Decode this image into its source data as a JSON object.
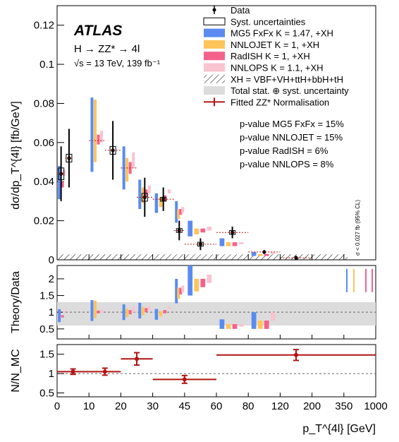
{
  "chart_data": [
    {
      "type": "scatter",
      "ylabel": "dσ/dp_T^{4l} [fb/GeV]",
      "ylim": [
        0,
        0.13
      ],
      "yticks": [
        0,
        0.02,
        0.04,
        0.06,
        0.08,
        0.1,
        0.12
      ],
      "ytick_labels": [
        "0",
        "0.02",
        "0.04",
        "0.06",
        "0.08",
        "0.1",
        "0.12"
      ],
      "experiment": "ATLAS",
      "process": "H → ZZ* → 4l",
      "energy_lumi": "√s = 13 TeV, 139 fb⁻¹",
      "upper_limit_note": "σ < 0.027 fb (95% CL)",
      "legend": [
        {
          "label": "Data",
          "color": "#000000",
          "style": "marker"
        },
        {
          "label": "Syst. uncertainties",
          "color": "#000000",
          "style": "open-box"
        },
        {
          "label": "MG5 FxFx K = 1.47, +XH",
          "color": "#5B8BF0",
          "style": "band"
        },
        {
          "label": "NNLOJET K = 1, +XH",
          "color": "#FFC45A",
          "style": "band"
        },
        {
          "label": "RadISH K = 1, +XH",
          "color": "#F4628C",
          "style": "band"
        },
        {
          "label": "NNLOPS K = 1.1, +XH",
          "color": "#F9C3CF",
          "style": "band"
        },
        {
          "label": "XH = VBF+VH+ttH+bbH+tH",
          "color": "#000000",
          "style": "hatch"
        },
        {
          "label": "Total stat. ⊕ syst. uncertainty",
          "color": "#DCDCDC",
          "style": "band"
        },
        {
          "label": "Fitted ZZ* Normalisation",
          "color": "#B11515",
          "style": "errorbar"
        }
      ],
      "pvalues": [
        "p-value MG5 FxFx = 15%",
        "p-value NNLOJET = 15%",
        "p-value RadISH = 6%",
        "p-value NNLOPS = 8%"
      ],
      "bins": [
        {
          "lo": "0",
          "hi": "2.5",
          "data": 0.044,
          "err_up": 0.014,
          "err_down": 0.014,
          "syst": 0.003,
          "mg5": [
            0.031,
            0.048
          ],
          "nnlojet": null,
          "radish": [
            0.037,
            0.04
          ],
          "nnlops": [
            0.043,
            0.046
          ]
        },
        {
          "lo": "2.5",
          "hi": "5",
          "data": 0.052,
          "err_up": 0.015,
          "err_down": 0.015,
          "syst": 0.002,
          "mg5": null,
          "nnlojet": null,
          "radish": null,
          "nnlops": null
        },
        {
          "lo": "10",
          "hi": "15",
          "data": 0.061,
          "err_up": 0.0,
          "err_down": 0.0,
          "syst": 0.0,
          "mg5": [
            0.045,
            0.083
          ],
          "nnlojet": [
            0.05,
            0.082
          ],
          "radish": [
            0.059,
            0.064
          ],
          "nnlops": [
            0.06,
            0.066
          ]
        },
        {
          "lo": "15",
          "hi": "20",
          "data": 0.056,
          "err_up": 0.015,
          "err_down": 0.015,
          "syst": 0.002,
          "mg5": null,
          "nnlojet": null,
          "radish": null,
          "nnlops": null
        },
        {
          "lo": "20",
          "hi": "25",
          "data": 0.047,
          "err_up": 0.0,
          "err_down": 0.0,
          "syst": 0.0,
          "mg5": [
            0.036,
            0.058
          ],
          "nnlojet": [
            0.04,
            0.052
          ],
          "radish": [
            0.044,
            0.05
          ],
          "nnlops": [
            0.047,
            0.055
          ]
        },
        {
          "lo": "25",
          "hi": "30",
          "data": 0.032,
          "err_up": 0.01,
          "err_down": 0.01,
          "syst": 0.002,
          "mg5": [
            0.026,
            0.041
          ],
          "nnlojet": [
            0.029,
            0.037
          ],
          "radish": [
            0.032,
            0.036
          ],
          "nnlops": [
            0.034,
            0.038
          ]
        },
        {
          "lo": "30",
          "hi": "40",
          "data": 0.031,
          "err_up": 0.006,
          "err_down": 0.006,
          "syst": 0.001,
          "mg5": [
            0.024,
            0.034
          ],
          "nnlojet": [
            0.027,
            0.032
          ],
          "radish": [
            0.03,
            0.033
          ],
          "nnlops": [
            0.034,
            0.036
          ]
        },
        {
          "lo": "40",
          "hi": "45",
          "data": 0.015,
          "err_up": 0.005,
          "err_down": 0.005,
          "syst": 0.001,
          "mg5": [
            0.019,
            0.03
          ],
          "nnlojet": [
            0.021,
            0.026
          ],
          "radish": [
            0.023,
            0.026
          ],
          "nnlops": [
            0.024,
            0.027
          ]
        },
        {
          "lo": "45",
          "hi": "60",
          "data": 0.008,
          "err_up": 0.003,
          "err_down": 0.003,
          "syst": 0.001,
          "mg5": [
            0.012,
            0.02
          ],
          "nnlojet": [
            0.013,
            0.016
          ],
          "radish": [
            0.014,
            0.016
          ],
          "nnlops": [
            0.015,
            0.017
          ]
        },
        {
          "lo": "60",
          "hi": "80",
          "data": 0.014,
          "err_up": 0.003,
          "err_down": 0.003,
          "syst": 0.001,
          "mg5": [
            0.007,
            0.011
          ],
          "nnlojet": [
            0.007,
            0.009
          ],
          "radish": [
            0.007,
            0.009
          ],
          "nnlops": [
            0.008,
            0.009
          ]
        },
        {
          "lo": "80",
          "hi": "120",
          "data": 0.004,
          "err_up": 0.001,
          "err_down": 0.001,
          "syst": 0.0,
          "mg5": [
            0.002,
            0.004
          ],
          "nnlojet": [
            0.002,
            0.003
          ],
          "radish": [
            0.002,
            0.003
          ],
          "nnlops": [
            0.003,
            0.004
          ]
        },
        {
          "lo": "120",
          "hi": "200",
          "data": 0.001,
          "err_up": 0.001,
          "err_down": 0.001,
          "syst": 0.0,
          "mg5": null,
          "nnlojet": null,
          "radish": null,
          "nnlops": null
        }
      ]
    },
    {
      "type": "scatter",
      "ylabel": "Theory/Data",
      "ylim": [
        0.2,
        2.4
      ],
      "yticks": [
        0.5,
        1,
        1.5,
        2
      ],
      "ytick_labels": [
        "0.5",
        "1",
        "1.5",
        "2"
      ],
      "reference_line": 1
    },
    {
      "type": "scatter",
      "ylabel": "N/N_MC",
      "ylim": [
        0.4,
        1.75
      ],
      "yticks": [
        0.5,
        1,
        1.5
      ],
      "ytick_labels": [
        "0.5",
        "1",
        "1.5"
      ],
      "reference_line": 1,
      "xlabel": "p_T^{4l} [GeV]",
      "x_edges": [
        "0",
        "10",
        "20",
        "30",
        "45",
        "60",
        "80",
        "120",
        "200",
        "350",
        "1000"
      ],
      "points": [
        {
          "lo": "0",
          "hi": "10",
          "value": 1.05,
          "err": 0.07
        },
        {
          "lo": "10",
          "hi": "20",
          "value": 1.05,
          "err": 0.09
        },
        {
          "lo": "20",
          "hi": "30",
          "value": 1.38,
          "err": 0.16
        },
        {
          "lo": "30",
          "hi": "60",
          "value": 0.85,
          "err": 0.1
        },
        {
          "lo": "60",
          "hi": "1000",
          "value": 1.48,
          "err": 0.14
        }
      ]
    }
  ]
}
